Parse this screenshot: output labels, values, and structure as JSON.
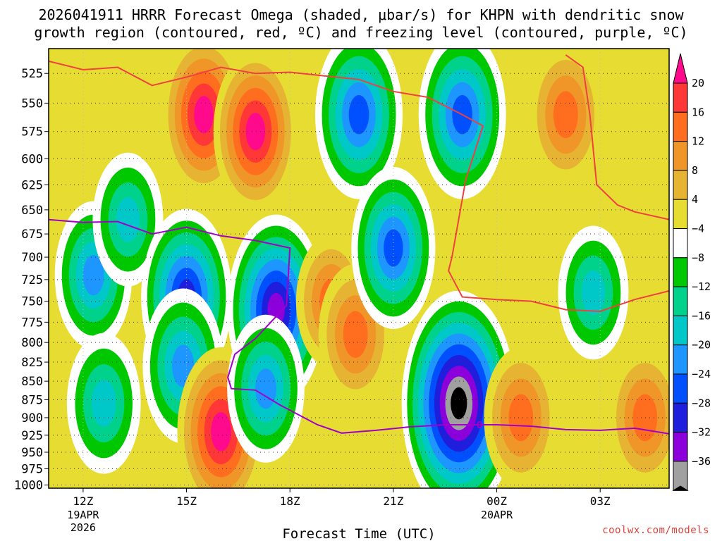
{
  "header": {
    "title_line1": "2026041911 HRRR Forecast Omega (shaded, μbar/s) for KHPN with dendritic snow",
    "title_line2": "growth region (contoured, red, ºC) and freezing level (contoured, purple, ºC)"
  },
  "footer": {
    "credit": "coolwx.com/models"
  },
  "chart_data": {
    "type": "heatmap",
    "title": "2026041911 HRRR Forecast Omega (shaded, μbar/s) for KHPN with dendritic snow growth region (contoured, red, ºC) and freezing level (contoured, purple, ºC)",
    "xlabel": "Forecast Time (UTC)",
    "ylabel": "",
    "x_range_hours": [
      11,
      29
    ],
    "y_range_hPa": [
      1005,
      505
    ],
    "y_scale": "log-pressure (inverted)",
    "grid": "dotted",
    "x_ticks": [
      {
        "hour": 12,
        "label": "12Z",
        "sub1": "19APR",
        "sub2": "2026"
      },
      {
        "hour": 15,
        "label": "15Z",
        "sub1": "",
        "sub2": ""
      },
      {
        "hour": 18,
        "label": "18Z",
        "sub1": "",
        "sub2": ""
      },
      {
        "hour": 21,
        "label": "21Z",
        "sub1": "",
        "sub2": ""
      },
      {
        "hour": 24,
        "label": "00Z",
        "sub1": "20APR",
        "sub2": ""
      },
      {
        "hour": 27,
        "label": "03Z",
        "sub1": "",
        "sub2": ""
      }
    ],
    "y_ticks": [
      525,
      550,
      575,
      600,
      625,
      650,
      675,
      700,
      725,
      750,
      775,
      800,
      825,
      850,
      875,
      900,
      925,
      950,
      975,
      1000
    ],
    "colorbar": {
      "labels": [
        "20",
        "16",
        "12",
        "8",
        "4",
        "−4",
        "−8",
        "−12",
        "−16",
        "−20",
        "−24",
        "−28",
        "−32",
        "−36"
      ],
      "colors": [
        "#ff0a8c",
        "#ff3737",
        "#ff6e1e",
        "#f09628",
        "#e6b432",
        "#e6dc32",
        "#ffffff",
        "#00c800",
        "#00d28c",
        "#00c8c8",
        "#1e96ff",
        "#0050ff",
        "#1e1edc",
        "#8c00dc",
        "#a0a0a0",
        "#000000"
      ]
    },
    "omega_cells": [
      {
        "t": 12.3,
        "p": 720,
        "v": -14
      },
      {
        "t": 13.3,
        "p": 660,
        "v": -10
      },
      {
        "t": 12.6,
        "p": 880,
        "v": -12
      },
      {
        "t": 15.0,
        "p": 745,
        "v": -22
      },
      {
        "t": 14.9,
        "p": 830,
        "v": -16
      },
      {
        "t": 15.5,
        "p": 560,
        "v": 18
      },
      {
        "t": 17.0,
        "p": 575,
        "v": 18
      },
      {
        "t": 16.0,
        "p": 920,
        "v": 20
      },
      {
        "t": 17.6,
        "p": 760,
        "v": -26
      },
      {
        "t": 17.3,
        "p": 860,
        "v": -14
      },
      {
        "t": 19.2,
        "p": 750,
        "v": 10
      },
      {
        "t": 19.9,
        "p": 790,
        "v": 12
      },
      {
        "t": 20.0,
        "p": 560,
        "v": -20
      },
      {
        "t": 21.0,
        "p": 690,
        "v": -18
      },
      {
        "t": 23.0,
        "p": 560,
        "v": -20
      },
      {
        "t": 22.9,
        "p": 880,
        "v": -36
      },
      {
        "t": 24.7,
        "p": 900,
        "v": 12
      },
      {
        "t": 26.0,
        "p": 560,
        "v": 12
      },
      {
        "t": 26.8,
        "p": 740,
        "v": -10
      },
      {
        "t": 28.3,
        "p": 900,
        "v": 12
      }
    ],
    "series": [
      {
        "name": "dendritic snow growth region",
        "color": "#f04040",
        "points": [
          [
            11,
            515
          ],
          [
            12,
            522
          ],
          [
            13,
            520
          ],
          [
            14,
            535
          ],
          [
            15,
            528
          ],
          [
            16,
            520
          ],
          [
            17,
            525
          ],
          [
            18,
            524
          ],
          [
            19,
            527
          ],
          [
            20,
            530
          ],
          [
            21,
            540
          ],
          [
            22,
            545
          ],
          [
            23,
            560
          ],
          [
            23.6,
            570
          ],
          [
            23.1,
            620
          ],
          [
            22.7,
            700
          ],
          [
            22.6,
            715
          ],
          [
            23,
            745
          ],
          [
            24,
            748
          ],
          [
            25,
            750
          ],
          [
            26,
            760
          ],
          [
            27,
            762
          ],
          [
            28,
            748
          ],
          [
            29,
            738
          ]
        ]
      },
      {
        "name": "dendritic snow growth region",
        "color": "#f04040",
        "points": [
          [
            26,
            510
          ],
          [
            26.5,
            520
          ],
          [
            26.7,
            560
          ],
          [
            26.9,
            625
          ],
          [
            27.5,
            645
          ],
          [
            28,
            652
          ],
          [
            29,
            660
          ]
        ]
      },
      {
        "name": "freezing level",
        "color": "#a000c8",
        "label": "0",
        "points": [
          [
            11,
            660
          ],
          [
            12,
            663
          ],
          [
            13,
            662
          ],
          [
            14,
            675
          ],
          [
            15,
            668
          ],
          [
            16,
            677
          ],
          [
            17,
            682
          ],
          [
            18,
            690
          ],
          [
            17.9,
            755
          ],
          [
            17,
            795
          ],
          [
            16.4,
            815
          ],
          [
            16.2,
            845
          ],
          [
            16.3,
            860
          ],
          [
            17,
            862
          ],
          [
            17.7,
            882
          ],
          [
            18.8,
            910
          ],
          [
            19.5,
            922
          ],
          [
            20.5,
            918
          ],
          [
            21.5,
            913
          ],
          [
            22.5,
            910
          ],
          [
            23,
            910
          ],
          [
            24,
            910
          ],
          [
            25,
            912
          ],
          [
            26,
            917
          ],
          [
            27,
            918
          ],
          [
            28,
            915
          ],
          [
            29,
            923
          ]
        ]
      }
    ]
  }
}
